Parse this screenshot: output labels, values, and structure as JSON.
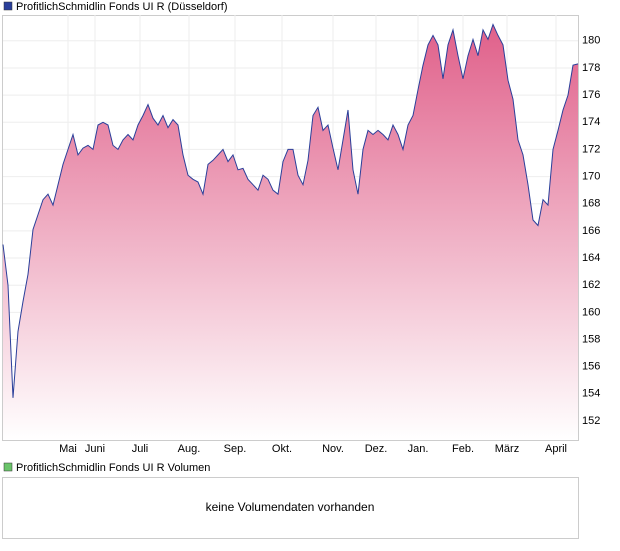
{
  "chart_data": {
    "type": "area",
    "title": "ProfitlichSchmidlin Fonds UI R (Düsseldorf)",
    "color": "#2a3f9a",
    "fill_top": "#e0608a",
    "values": [
      165,
      162,
      153.7,
      158.6,
      160.8,
      162.8,
      166.1,
      167.2,
      168.3,
      168.7,
      167.9,
      169.4,
      170.9,
      172,
      173.1,
      171.6,
      172.1,
      172.3,
      172,
      173.8,
      174,
      173.8,
      172.3,
      172,
      172.7,
      173.1,
      172.7,
      173.8,
      174.5,
      175.3,
      174.3,
      173.8,
      174.5,
      173.6,
      174.2,
      173.8,
      171.6,
      170.1,
      169.8,
      169.6,
      168.7,
      170.9,
      171.2,
      171.6,
      172,
      171.1,
      171.6,
      170.5,
      170.6,
      169.8,
      169.4,
      169,
      170.1,
      169.8,
      169,
      168.7,
      171.1,
      172,
      172,
      170.1,
      169.4,
      171.2,
      174.5,
      175.1,
      173.4,
      173.8,
      172.1,
      170.5,
      172.7,
      174.9,
      170.5,
      168.7,
      172,
      173.4,
      173.1,
      173.4,
      173.1,
      172.7,
      173.8,
      173.1,
      172,
      173.8,
      174.5,
      176.4,
      178.2,
      179.7,
      180.4,
      179.7,
      177.2,
      179.7,
      180.8,
      178.9,
      177.2,
      178.9,
      180.1,
      178.9,
      180.8,
      180.1,
      181.2,
      180.4,
      179.7,
      177.1,
      175.7,
      172.7,
      171.6,
      169.4,
      166.8,
      166.4,
      168.3,
      167.9,
      172,
      173.4,
      174.9,
      176,
      178.2,
      178.3
    ],
    "xlim": [
      0,
      115
    ],
    "xticks": [
      {
        "value": 13,
        "label": "Mai"
      },
      {
        "value": 18.4,
        "label": "Juni"
      },
      {
        "value": 27.4,
        "label": "Juli"
      },
      {
        "value": 37.2,
        "label": "Aug."
      },
      {
        "value": 46.4,
        "label": "Sep."
      },
      {
        "value": 55.8,
        "label": "Okt."
      },
      {
        "value": 66,
        "label": "Nov."
      },
      {
        "value": 74.6,
        "label": "Dez."
      },
      {
        "value": 83,
        "label": "Jan."
      },
      {
        "value": 92,
        "label": "Feb."
      },
      {
        "value": 100.8,
        "label": "März"
      },
      {
        "value": 110.6,
        "label": "April"
      }
    ],
    "ylim": [
      150.6,
      181.9
    ],
    "yticks": [
      152,
      154,
      156,
      158,
      160,
      162,
      164,
      166,
      168,
      170,
      172,
      174,
      176,
      178,
      180
    ],
    "grid": true
  },
  "volume": {
    "title": "ProfitlichSchmidlin Fonds UI R Volumen",
    "color": "#6ac46a",
    "message": "keine Volumendaten vorhanden"
  }
}
